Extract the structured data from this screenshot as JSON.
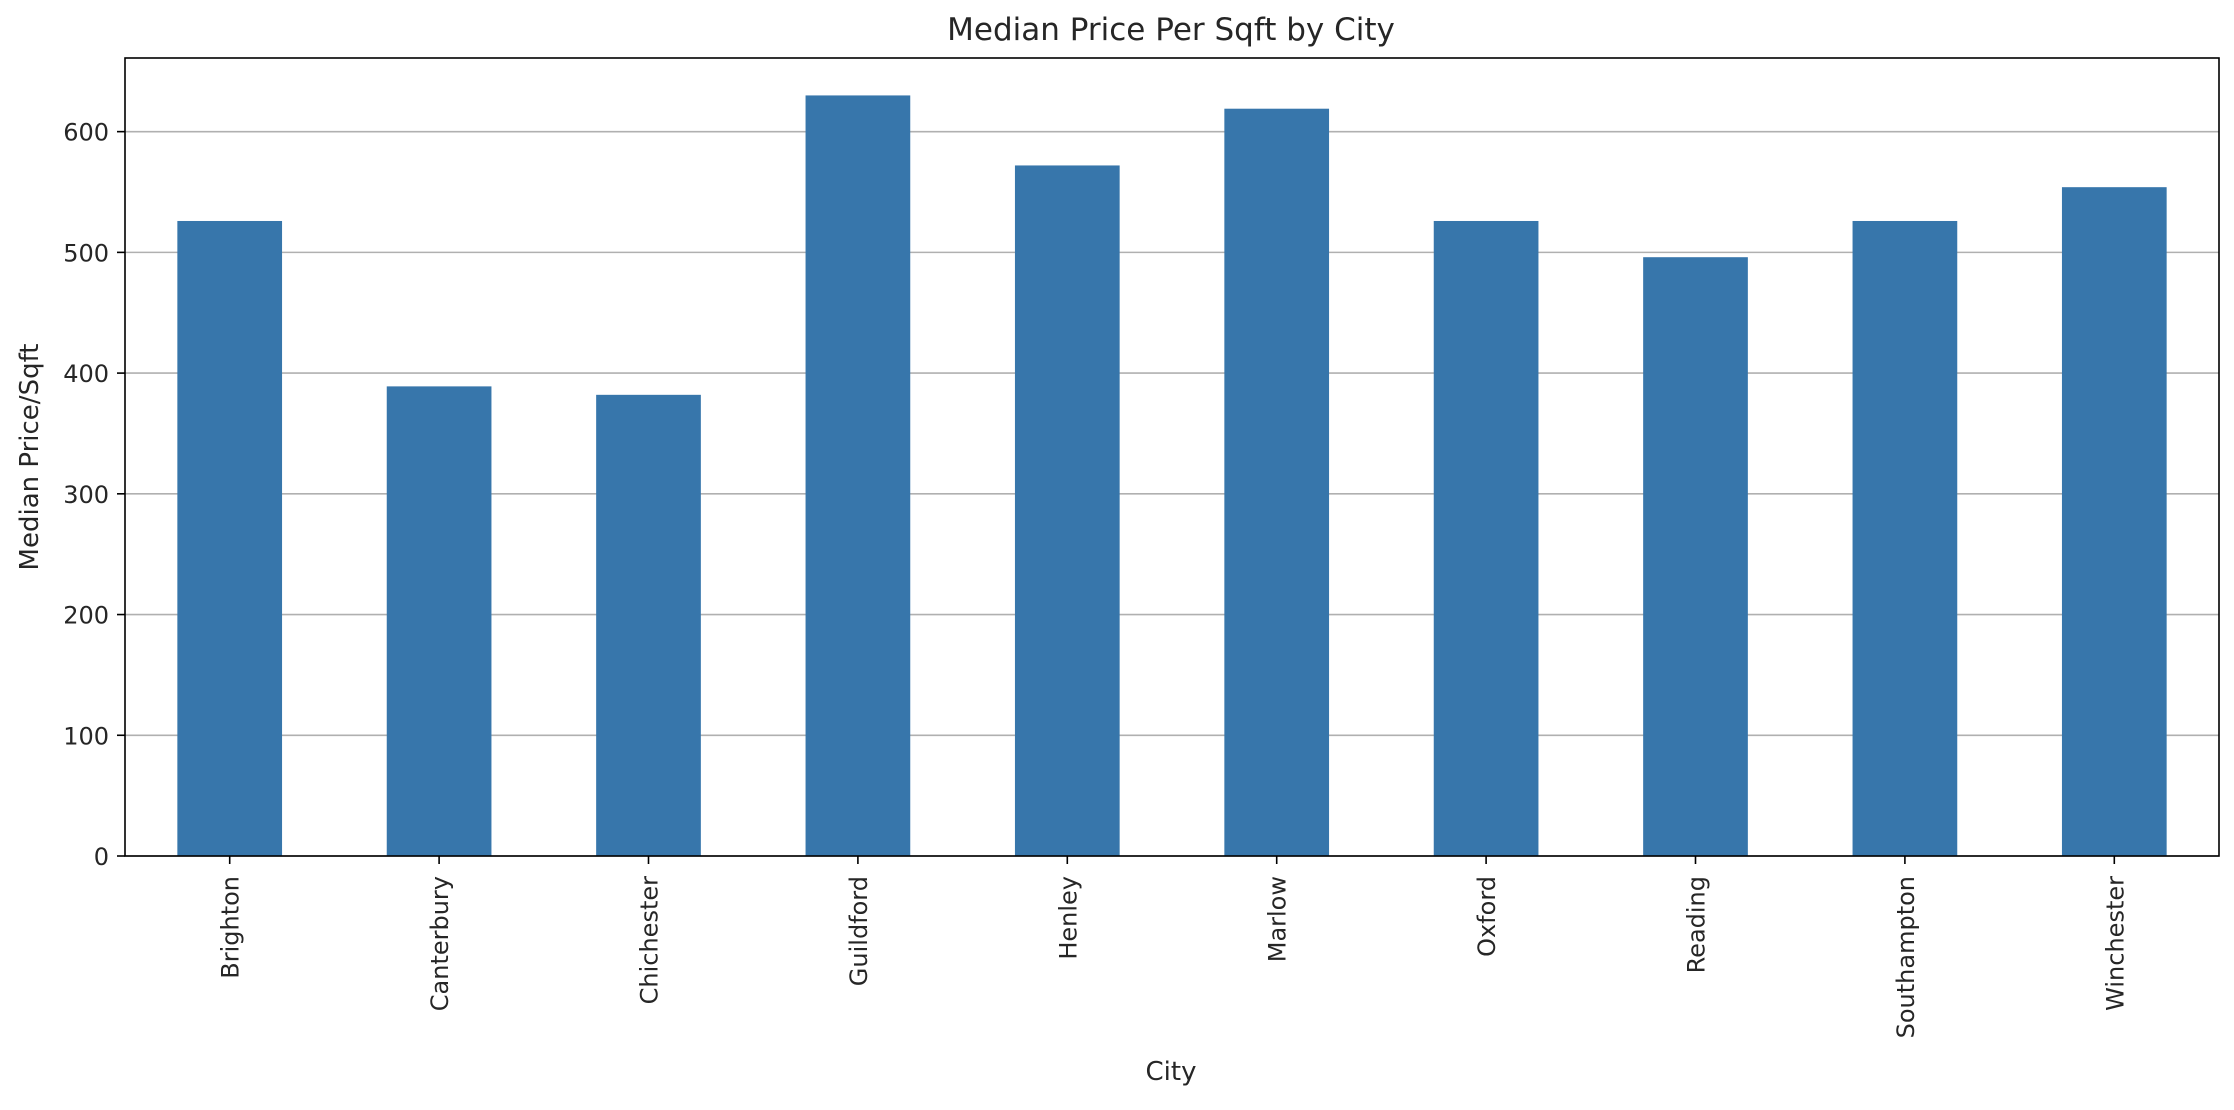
{
  "chart_data": {
    "type": "bar",
    "title": "Median Price Per Sqft by City",
    "xlabel": "City",
    "ylabel": "Median Price/Sqft",
    "categories": [
      "Brighton",
      "Canterbury",
      "Chichester",
      "Guildford",
      "Henley",
      "Marlow",
      "Oxford",
      "Reading",
      "Southampton",
      "Winchester"
    ],
    "values": [
      526,
      389,
      382,
      630,
      572,
      619,
      526,
      496,
      526,
      554
    ],
    "ylim": [
      0,
      661
    ],
    "yticks": [
      0,
      100,
      200,
      300,
      400,
      500,
      600
    ],
    "grid": "y",
    "colors": {
      "bar": "#3776ab",
      "grid": "#b0b0b0",
      "axis": "#000000"
    }
  }
}
